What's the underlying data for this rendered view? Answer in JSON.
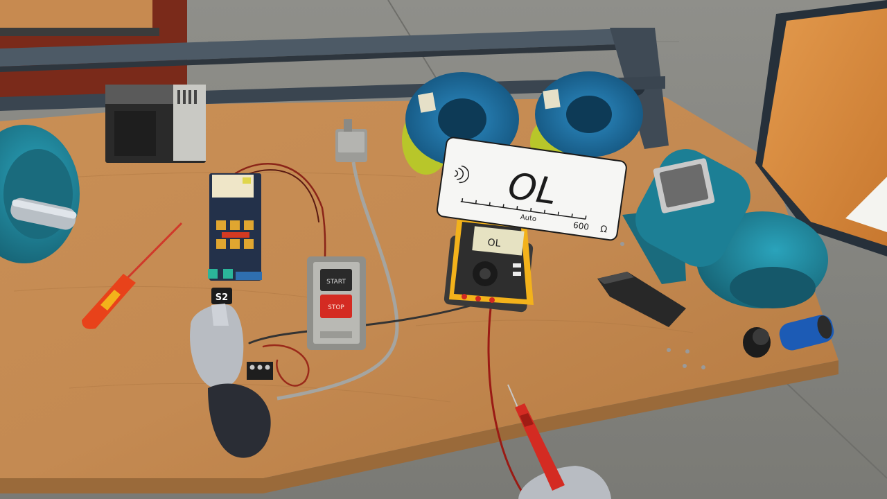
{
  "hud": {
    "meter_reading": "OL",
    "meter_mode": "Auto",
    "meter_range": "600",
    "meter_unit": "Ω",
    "continuity_icon": "sound-wave-icon"
  },
  "multimeter": {
    "lcd_reading": "OL"
  },
  "pushbutton_station": {
    "start_label": "START",
    "stop_label": "STOP"
  },
  "contactor": {
    "tag": "S2"
  },
  "colors": {
    "table": "#c98f55",
    "floor": "#8a8a85",
    "motor": "#1c7f95",
    "multimeter_body": "#f3b21b",
    "spool": "#1f7ab0",
    "wire": "#b8c62a",
    "stop_red": "#d42b22",
    "screwdriver": "#e8421a"
  }
}
